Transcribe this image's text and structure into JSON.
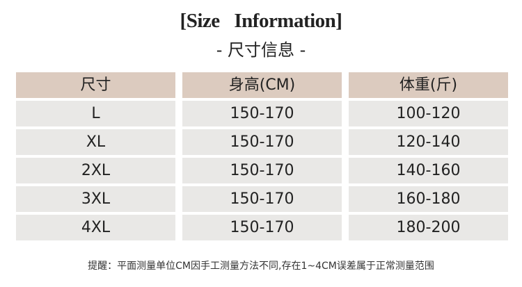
{
  "title": "[Size   Information]",
  "subtitle": "- 尺寸信息 -",
  "table": {
    "headers": [
      "尺寸",
      "身高(CM)",
      "体重(斤)"
    ],
    "rows": [
      [
        "L",
        "150-170",
        "100-120"
      ],
      [
        "XL",
        "150-170",
        "120-140"
      ],
      [
        "2XL",
        "150-170",
        "140-160"
      ],
      [
        "3XL",
        "150-170",
        "160-180"
      ],
      [
        "4XL",
        "150-170",
        "180-200"
      ]
    ]
  },
  "note": "提醒：平面测量单位CM因手工测量方法不同,存在1~4CM误差属于正常测量范围",
  "colors": {
    "header_bg": "#dccbbf",
    "row_bg": "#e9e8e6"
  }
}
